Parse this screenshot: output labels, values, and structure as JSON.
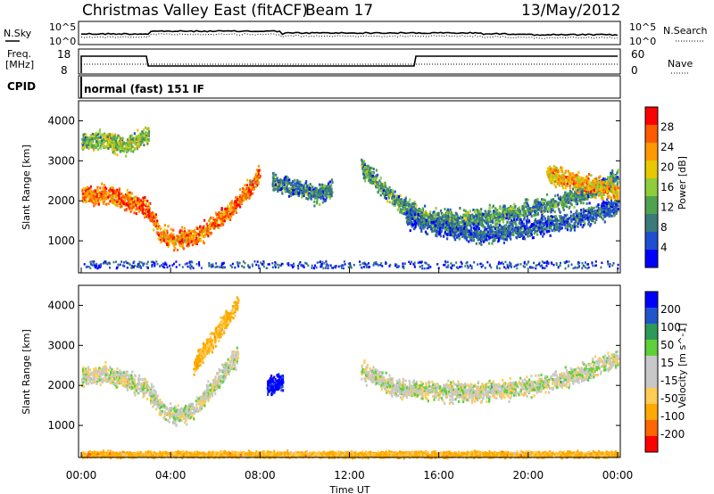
{
  "header": {
    "title": "Christmas Valley East (fitACF)",
    "beam": "Beam 17",
    "date": "13/May/2012"
  },
  "side_labels": {
    "nsky": "N.Sky",
    "nsearch": "N.Search",
    "freq_line1": "Freq.",
    "freq_line2": "[MHz]",
    "nave": "Nave",
    "cpid": "CPID",
    "cpid_value": "normal (fast) 151 IF"
  },
  "noise_axis": {
    "left_ticks": [
      "10^5",
      "10^0"
    ],
    "right_ticks": [
      "10^5",
      "10^0"
    ]
  },
  "freq_axis": {
    "left_ticks": [
      "18",
      "8"
    ],
    "right_ticks": [
      "60",
      "0"
    ]
  },
  "colors": {
    "power_scale": [
      "#0000ff",
      "#1f4fd0",
      "#3a7a7a",
      "#4fa34f",
      "#8fce3a",
      "#e8c800",
      "#ff9900",
      "#ff5a00",
      "#ff0000"
    ],
    "velocity_scale": [
      "#ff0000",
      "#ff6600",
      "#ffaa00",
      "#ffcc55",
      "#c8c8c8",
      "#c8c8c8",
      "#5fcf3a",
      "#2d9a5a",
      "#2255cc",
      "#0000ff"
    ]
  },
  "chart_data": [
    {
      "type": "heatmap",
      "name": "power-panel",
      "ylabel": "Slant Range [km]",
      "ylim": [
        200,
        4500
      ],
      "xlim": [
        0,
        24
      ],
      "yticks": [
        1000,
        2000,
        3000,
        4000
      ],
      "colorbar": {
        "label": "Power [dB]",
        "range": [
          0,
          32
        ],
        "ticks": [
          4,
          8,
          12,
          16,
          20,
          24,
          28
        ]
      },
      "features": [
        {
          "t": [
            0,
            1,
            2,
            3,
            3.5,
            4,
            5,
            6,
            7,
            8
          ],
          "r": [
            2150,
            2200,
            2050,
            1800,
            1200,
            1050,
            1100,
            1500,
            2000,
            2700
          ],
          "power": 25
        },
        {
          "t": [
            0,
            1,
            2,
            3
          ],
          "r": [
            3500,
            3550,
            3400,
            3700
          ],
          "power": 15
        },
        {
          "t": [
            12.5,
            13.5,
            14.5,
            15.5,
            17,
            19,
            21,
            22.5,
            24
          ],
          "r": [
            2900,
            2300,
            1850,
            1600,
            1550,
            1700,
            1950,
            2200,
            2600
          ],
          "power": 11
        },
        {
          "t": [
            14.5,
            16,
            18,
            20,
            22,
            24
          ],
          "r": [
            1600,
            1350,
            1200,
            1350,
            1550,
            1900
          ],
          "power": 7
        },
        {
          "t": [
            8.5,
            9.5,
            10.5,
            11.2
          ],
          "r": [
            2500,
            2350,
            2200,
            2300
          ],
          "power": 9
        },
        {
          "t": [
            20.8,
            21.5,
            22.5,
            23.5,
            24
          ],
          "r": [
            2700,
            2600,
            2450,
            2300,
            2250
          ],
          "power": 22
        }
      ]
    },
    {
      "type": "heatmap",
      "name": "velocity-panel",
      "ylabel": "Slant Range [km]",
      "xlabel": "Time UT",
      "ylim": [
        200,
        4500
      ],
      "xlim": [
        0,
        24
      ],
      "yticks": [
        1000,
        2000,
        3000,
        4000
      ],
      "xticks": [
        "00:00",
        "04:00",
        "08:00",
        "12:00",
        "16:00",
        "20:00",
        "00:00"
      ],
      "colorbar": {
        "label": "Velocity [m s^-1]",
        "range": [
          -250,
          250
        ],
        "ticks": [
          "200",
          "100",
          "50",
          "15",
          "-15",
          "-50",
          "-100",
          "-200"
        ]
      },
      "features": [
        {
          "t": [
            0,
            1,
            2,
            3,
            3.5,
            4,
            5,
            6,
            7
          ],
          "r": [
            2250,
            2300,
            2150,
            1900,
            1500,
            1250,
            1400,
            2100,
            2800
          ],
          "velocity": 0
        },
        {
          "t": [
            8.3,
            8.6,
            9.0
          ],
          "r": [
            2050,
            2000,
            2150
          ],
          "velocity": 220
        },
        {
          "t": [
            12.5,
            14,
            16,
            18,
            20,
            22,
            24
          ],
          "r": [
            2400,
            1950,
            1900,
            1850,
            2000,
            2250,
            2700
          ],
          "velocity": 0
        },
        {
          "t": [
            5,
            6,
            7
          ],
          "r": [
            2500,
            3300,
            4100
          ],
          "velocity": -60
        },
        {
          "t": [
            0,
            24
          ],
          "r": [
            300,
            300
          ],
          "velocity": -60
        }
      ]
    }
  ]
}
